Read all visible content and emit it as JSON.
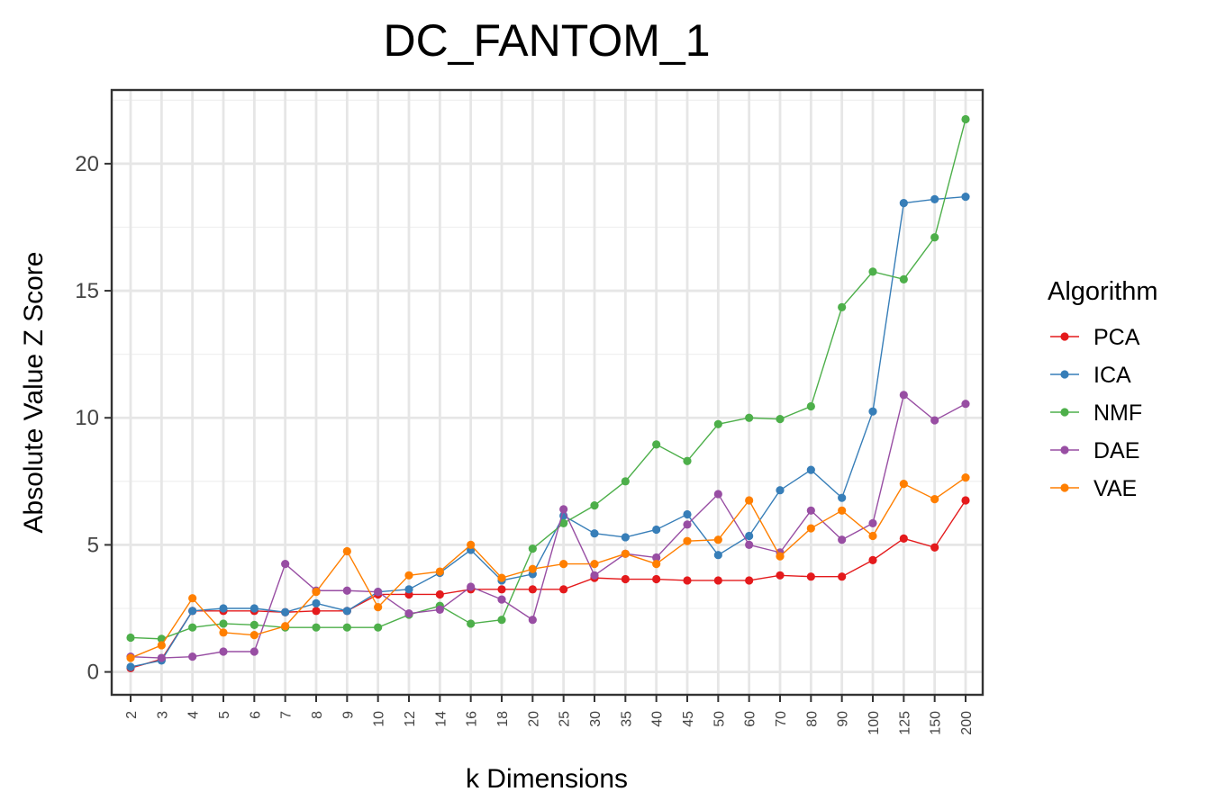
{
  "chart_data": {
    "type": "line",
    "title": "DC_FANTOM_1",
    "xlabel": "k Dimensions",
    "ylabel": "Absolute Value Z Score",
    "categories": [
      "2",
      "3",
      "4",
      "5",
      "6",
      "7",
      "8",
      "9",
      "10",
      "12",
      "14",
      "16",
      "18",
      "20",
      "25",
      "30",
      "35",
      "40",
      "45",
      "50",
      "60",
      "70",
      "80",
      "90",
      "100",
      "125",
      "150",
      "200"
    ],
    "yticks": [
      0,
      5,
      10,
      15,
      20
    ],
    "ylim": [
      -0.9,
      22.9
    ],
    "grid": true,
    "legend": {
      "title": "Algorithm",
      "position": "right"
    },
    "series": [
      {
        "name": "PCA",
        "color": "#e41a1c",
        "values": [
          0.15,
          0.5,
          2.4,
          2.4,
          2.4,
          2.35,
          2.4,
          2.4,
          3.05,
          3.05,
          3.05,
          3.25,
          3.25,
          3.25,
          3.25,
          3.7,
          3.65,
          3.65,
          3.6,
          3.6,
          3.6,
          3.8,
          3.75,
          3.75,
          4.4,
          5.25,
          4.9,
          6.75
        ]
      },
      {
        "name": "ICA",
        "color": "#377eb8",
        "values": [
          0.2,
          0.45,
          2.4,
          2.5,
          2.5,
          2.35,
          2.7,
          2.4,
          3.15,
          3.25,
          3.9,
          4.8,
          3.6,
          3.85,
          6.15,
          5.45,
          5.3,
          5.6,
          6.2,
          4.6,
          5.35,
          7.15,
          7.95,
          6.85,
          10.25,
          18.45,
          18.6,
          18.7
        ]
      },
      {
        "name": "NMF",
        "color": "#4daf4a",
        "values": [
          1.35,
          1.3,
          1.75,
          1.9,
          1.85,
          1.75,
          1.75,
          1.75,
          1.75,
          2.25,
          2.6,
          1.9,
          2.05,
          4.85,
          5.85,
          6.55,
          7.5,
          8.95,
          8.3,
          9.75,
          10.0,
          9.95,
          10.45,
          14.35,
          15.75,
          15.45,
          17.1,
          21.75
        ]
      },
      {
        "name": "DAE",
        "color": "#984ea3",
        "values": [
          0.6,
          0.55,
          0.6,
          0.8,
          0.8,
          4.25,
          3.2,
          3.2,
          3.15,
          2.3,
          2.45,
          3.35,
          2.85,
          2.05,
          6.4,
          3.8,
          4.65,
          4.5,
          5.8,
          7.0,
          5.0,
          4.7,
          6.35,
          5.2,
          5.85,
          10.9,
          9.9,
          10.55
        ]
      },
      {
        "name": "VAE",
        "color": "#ff7f00",
        "values": [
          0.55,
          1.05,
          2.9,
          1.55,
          1.45,
          1.8,
          3.15,
          4.75,
          2.55,
          3.8,
          3.95,
          5.0,
          3.7,
          4.05,
          4.25,
          4.25,
          4.65,
          4.25,
          5.15,
          5.2,
          6.75,
          4.55,
          5.65,
          6.35,
          5.35,
          7.4,
          6.8,
          7.65
        ]
      }
    ]
  }
}
